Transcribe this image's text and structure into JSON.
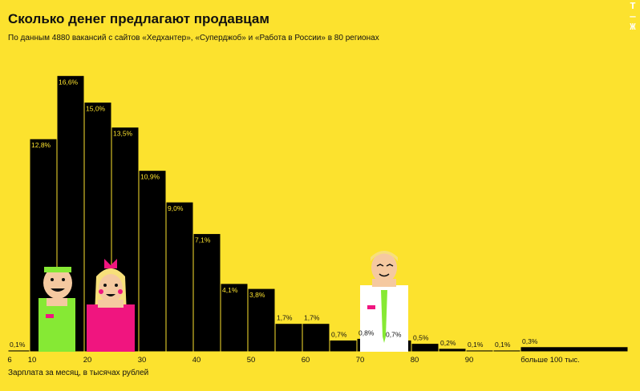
{
  "logo": "Т—Ж",
  "chart_data": {
    "type": "bar",
    "title": "Сколько денег предлагают продавцам",
    "subtitle": "По данным 4880 вакансий с сайтов «Хедхантер», «Суперджоб» и «Работа в России» в 80 регионах",
    "xlabel": "Зарплата за месяц, в тысячах рублей",
    "ylabel": "",
    "x_ticks": [
      "6",
      "10",
      "20",
      "30",
      "40",
      "50",
      "60",
      "70",
      "80",
      "90",
      "больше 100 тыс."
    ],
    "values": [
      0.1,
      12.8,
      16.6,
      15.0,
      13.5,
      10.9,
      9.0,
      7.1,
      4.1,
      3.8,
      1.7,
      1.7,
      0.7,
      0.8,
      0.7,
      0.5,
      0.2,
      0.1,
      0.1,
      0.3
    ],
    "value_labels": [
      "0,1%",
      "12,8%",
      "16,6%",
      "15,0%",
      "13,5%",
      "10,9%",
      "9,0%",
      "7,1%",
      "4,1%",
      "3,8%",
      "1,7%",
      "1,7%",
      "0,7%",
      "0,8%",
      "0,7%",
      "0,5%",
      "0,2%",
      "0,1%",
      "0,1%",
      "0,3%"
    ],
    "ylim": [
      0,
      17
    ],
    "grid": false,
    "bar_color": "#000000",
    "background": "#FCE22E"
  }
}
